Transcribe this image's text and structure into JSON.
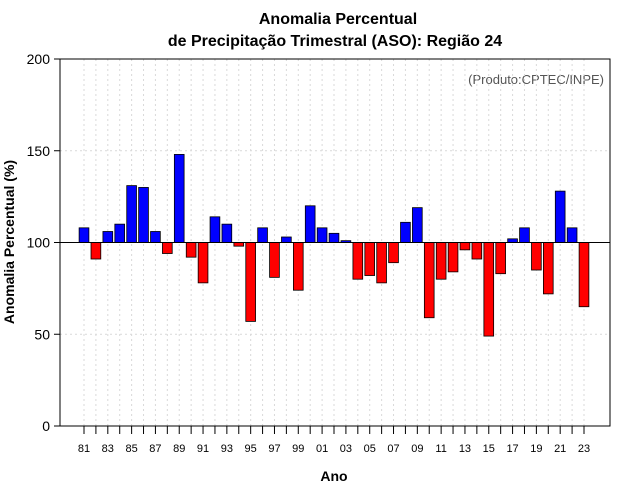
{
  "chart_data": {
    "type": "bar",
    "title": "Anomalia Percentual",
    "subtitle": "de Precipitação Trimestral (ASO): Região 24",
    "xlabel": "Ano",
    "ylabel": "Anomalia Percentual (%)",
    "source_note": "(Produto:CPTEC/INPE)",
    "ylim": [
      0,
      200
    ],
    "yticks": [
      "0",
      "50",
      "100",
      "150",
      "200"
    ],
    "baseline": 100,
    "grid": true,
    "positive_color": "#0000ff",
    "negative_color": "#ff0000",
    "categories": [
      "1981",
      "1982",
      "1983",
      "1984",
      "1985",
      "1986",
      "1987",
      "1988",
      "1989",
      "1990",
      "1991",
      "1992",
      "1993",
      "1994",
      "1995",
      "1996",
      "1997",
      "1998",
      "1999",
      "2000",
      "2001",
      "2002",
      "2003",
      "2004",
      "2005",
      "2006",
      "2007",
      "2008",
      "2009",
      "2010",
      "2011",
      "2012",
      "2013",
      "2014",
      "2015",
      "2016",
      "2017",
      "2018",
      "2019",
      "2020",
      "2021",
      "2022",
      "2023"
    ],
    "xtick_labels": [
      "81",
      "",
      "83",
      "",
      "85",
      "",
      "87",
      "",
      "89",
      "",
      "91",
      "",
      "93",
      "",
      "95",
      "",
      "97",
      "",
      "99",
      "",
      "01",
      "",
      "03",
      "",
      "05",
      "",
      "07",
      "",
      "09",
      "",
      "11",
      "",
      "13",
      "",
      "15",
      "",
      "17",
      "",
      "19",
      "",
      "21",
      "",
      "23"
    ],
    "values": [
      108,
      91,
      106,
      110,
      131,
      130,
      106,
      94,
      148,
      92,
      78,
      114,
      110,
      98,
      57,
      108,
      81,
      103,
      74,
      120,
      108,
      105,
      101,
      80,
      82,
      78,
      89,
      111,
      119,
      59,
      80,
      84,
      96,
      91,
      49,
      83,
      102,
      108,
      85,
      72,
      128,
      108,
      65
    ]
  }
}
